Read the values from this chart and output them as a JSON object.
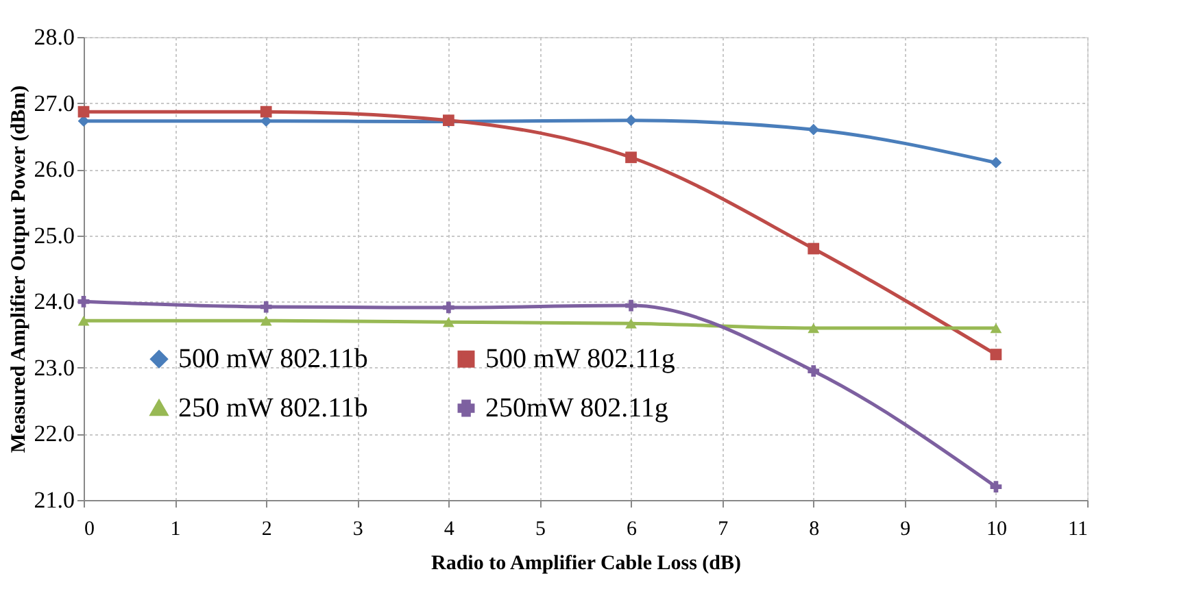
{
  "chart_data": {
    "type": "line",
    "xlabel": "Radio to Amplifier Cable Loss (dB)",
    "ylabel": "Measured Amplifier Output Power (dBm)",
    "x": [
      0,
      2,
      4,
      6,
      8,
      10
    ],
    "xlim": [
      0,
      11
    ],
    "xticks": [
      0,
      1,
      2,
      3,
      4,
      5,
      6,
      7,
      8,
      9,
      10,
      11
    ],
    "ylim": [
      21,
      28
    ],
    "yticks": [
      {
        "value": 21,
        "label": "21.0"
      },
      {
        "value": 22,
        "label": "22.0"
      },
      {
        "value": 23,
        "label": "23.0"
      },
      {
        "value": 24,
        "label": "24.0"
      },
      {
        "value": 25,
        "label": "25.0"
      },
      {
        "value": 26,
        "label": "26.0"
      },
      {
        "value": 27,
        "label": "27.0"
      },
      {
        "value": 28,
        "label": "28.0"
      }
    ],
    "grid": true,
    "legend": "bottom left",
    "line_style": "solid",
    "series": [
      {
        "name": "500 mW 802.11b",
        "color": "#4a7ebb",
        "marker": "diamond",
        "values": [
          26.73,
          26.73,
          26.72,
          26.74,
          26.6,
          26.1
        ]
      },
      {
        "name": "500 mW 802.11g",
        "color": "#be4b48",
        "marker": "square",
        "values": [
          26.87,
          26.87,
          26.74,
          26.18,
          24.8,
          23.2
        ]
      },
      {
        "name": "250 mW 802.11b",
        "color": "#98b954",
        "marker": "triangle",
        "values": [
          23.71,
          23.71,
          23.69,
          23.67,
          23.6,
          23.6
        ]
      },
      {
        "name": "250mW 802.11g",
        "color": "#7d60a0",
        "marker": "cross",
        "values": [
          24.0,
          23.92,
          23.91,
          23.94,
          22.95,
          21.2
        ]
      }
    ]
  }
}
